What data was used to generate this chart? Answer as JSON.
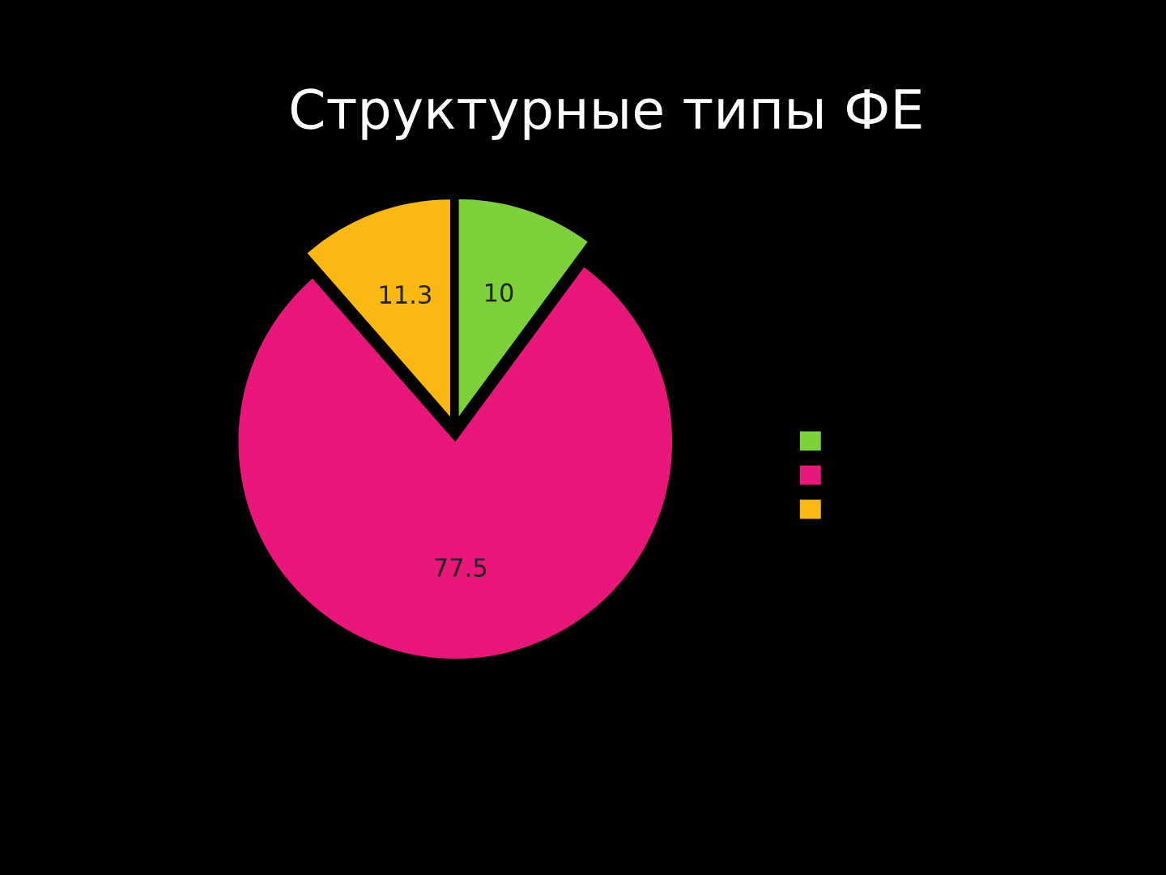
{
  "chart_data": {
    "type": "pie",
    "title": "Структурные типы ФЕ",
    "categories": [
      null,
      null,
      null
    ],
    "values": [
      10,
      77.5,
      11.3
    ],
    "colors": [
      "#7dd13a",
      "#e8177a",
      "#fdb813"
    ],
    "data_labels": true
  }
}
